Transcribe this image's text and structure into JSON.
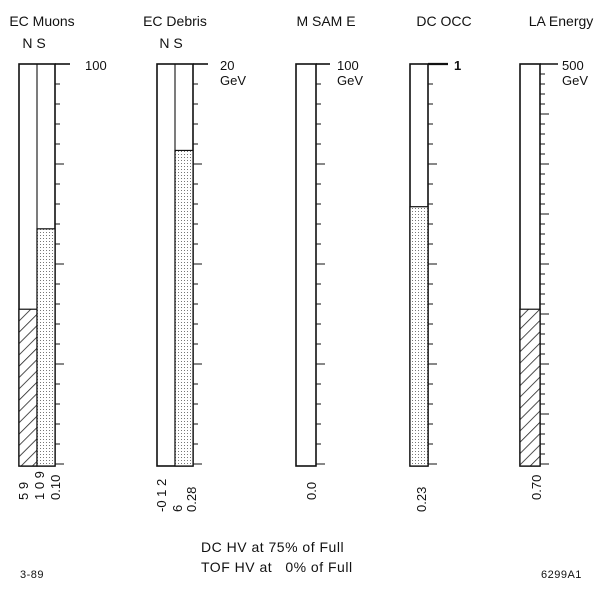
{
  "figure": {
    "panels": [
      {
        "id": "ec-muons",
        "title": "EC Muons",
        "sub": "N S",
        "scale_top": "100",
        "scale_unit": "",
        "bottom_labels": [
          "5 9",
          "1 0 9",
          "0.10"
        ],
        "segments": [
          {
            "name": "N",
            "fill": "hatch",
            "fraction": 0.39
          },
          {
            "name": "S",
            "fill": "dots",
            "fraction": 0.59
          }
        ]
      },
      {
        "id": "ec-debris",
        "title": "EC Debris",
        "sub": "N S",
        "scale_top": "20",
        "scale_unit": "GeV",
        "bottom_labels": [
          "-0 1 2",
          "6",
          "0.28"
        ],
        "segments": [
          {
            "name": "N",
            "fill": "none",
            "fraction": 0.0
          },
          {
            "name": "S",
            "fill": "dots",
            "fraction": 0.785
          }
        ]
      },
      {
        "id": "m-sam-e",
        "title": "M SAM E",
        "sub": "",
        "scale_top": "100",
        "scale_unit": "GeV",
        "bottom_labels": [
          "0.0"
        ],
        "segments": [
          {
            "name": "",
            "fill": "none",
            "fraction": 0.0
          }
        ]
      },
      {
        "id": "dc-occ",
        "title": "DC OCC",
        "sub": "",
        "scale_top": "1",
        "scale_unit": "",
        "bottom_labels": [
          "0.23"
        ],
        "segments": [
          {
            "name": "",
            "fill": "dots",
            "fraction": 0.645
          }
        ]
      },
      {
        "id": "la-energy",
        "title": "LA Energy",
        "sub": "",
        "scale_top": "500",
        "scale_unit": "GeV",
        "bottom_labels": [
          "0.70"
        ],
        "segments": [
          {
            "name": "",
            "fill": "hatch",
            "fraction": 0.39
          }
        ]
      }
    ]
  },
  "footer": {
    "line1": "DC  HV at 75% of Full",
    "line2": "TOF HV at   0% of Full",
    "left_code": "3-89",
    "right_code": "6299A1"
  }
}
